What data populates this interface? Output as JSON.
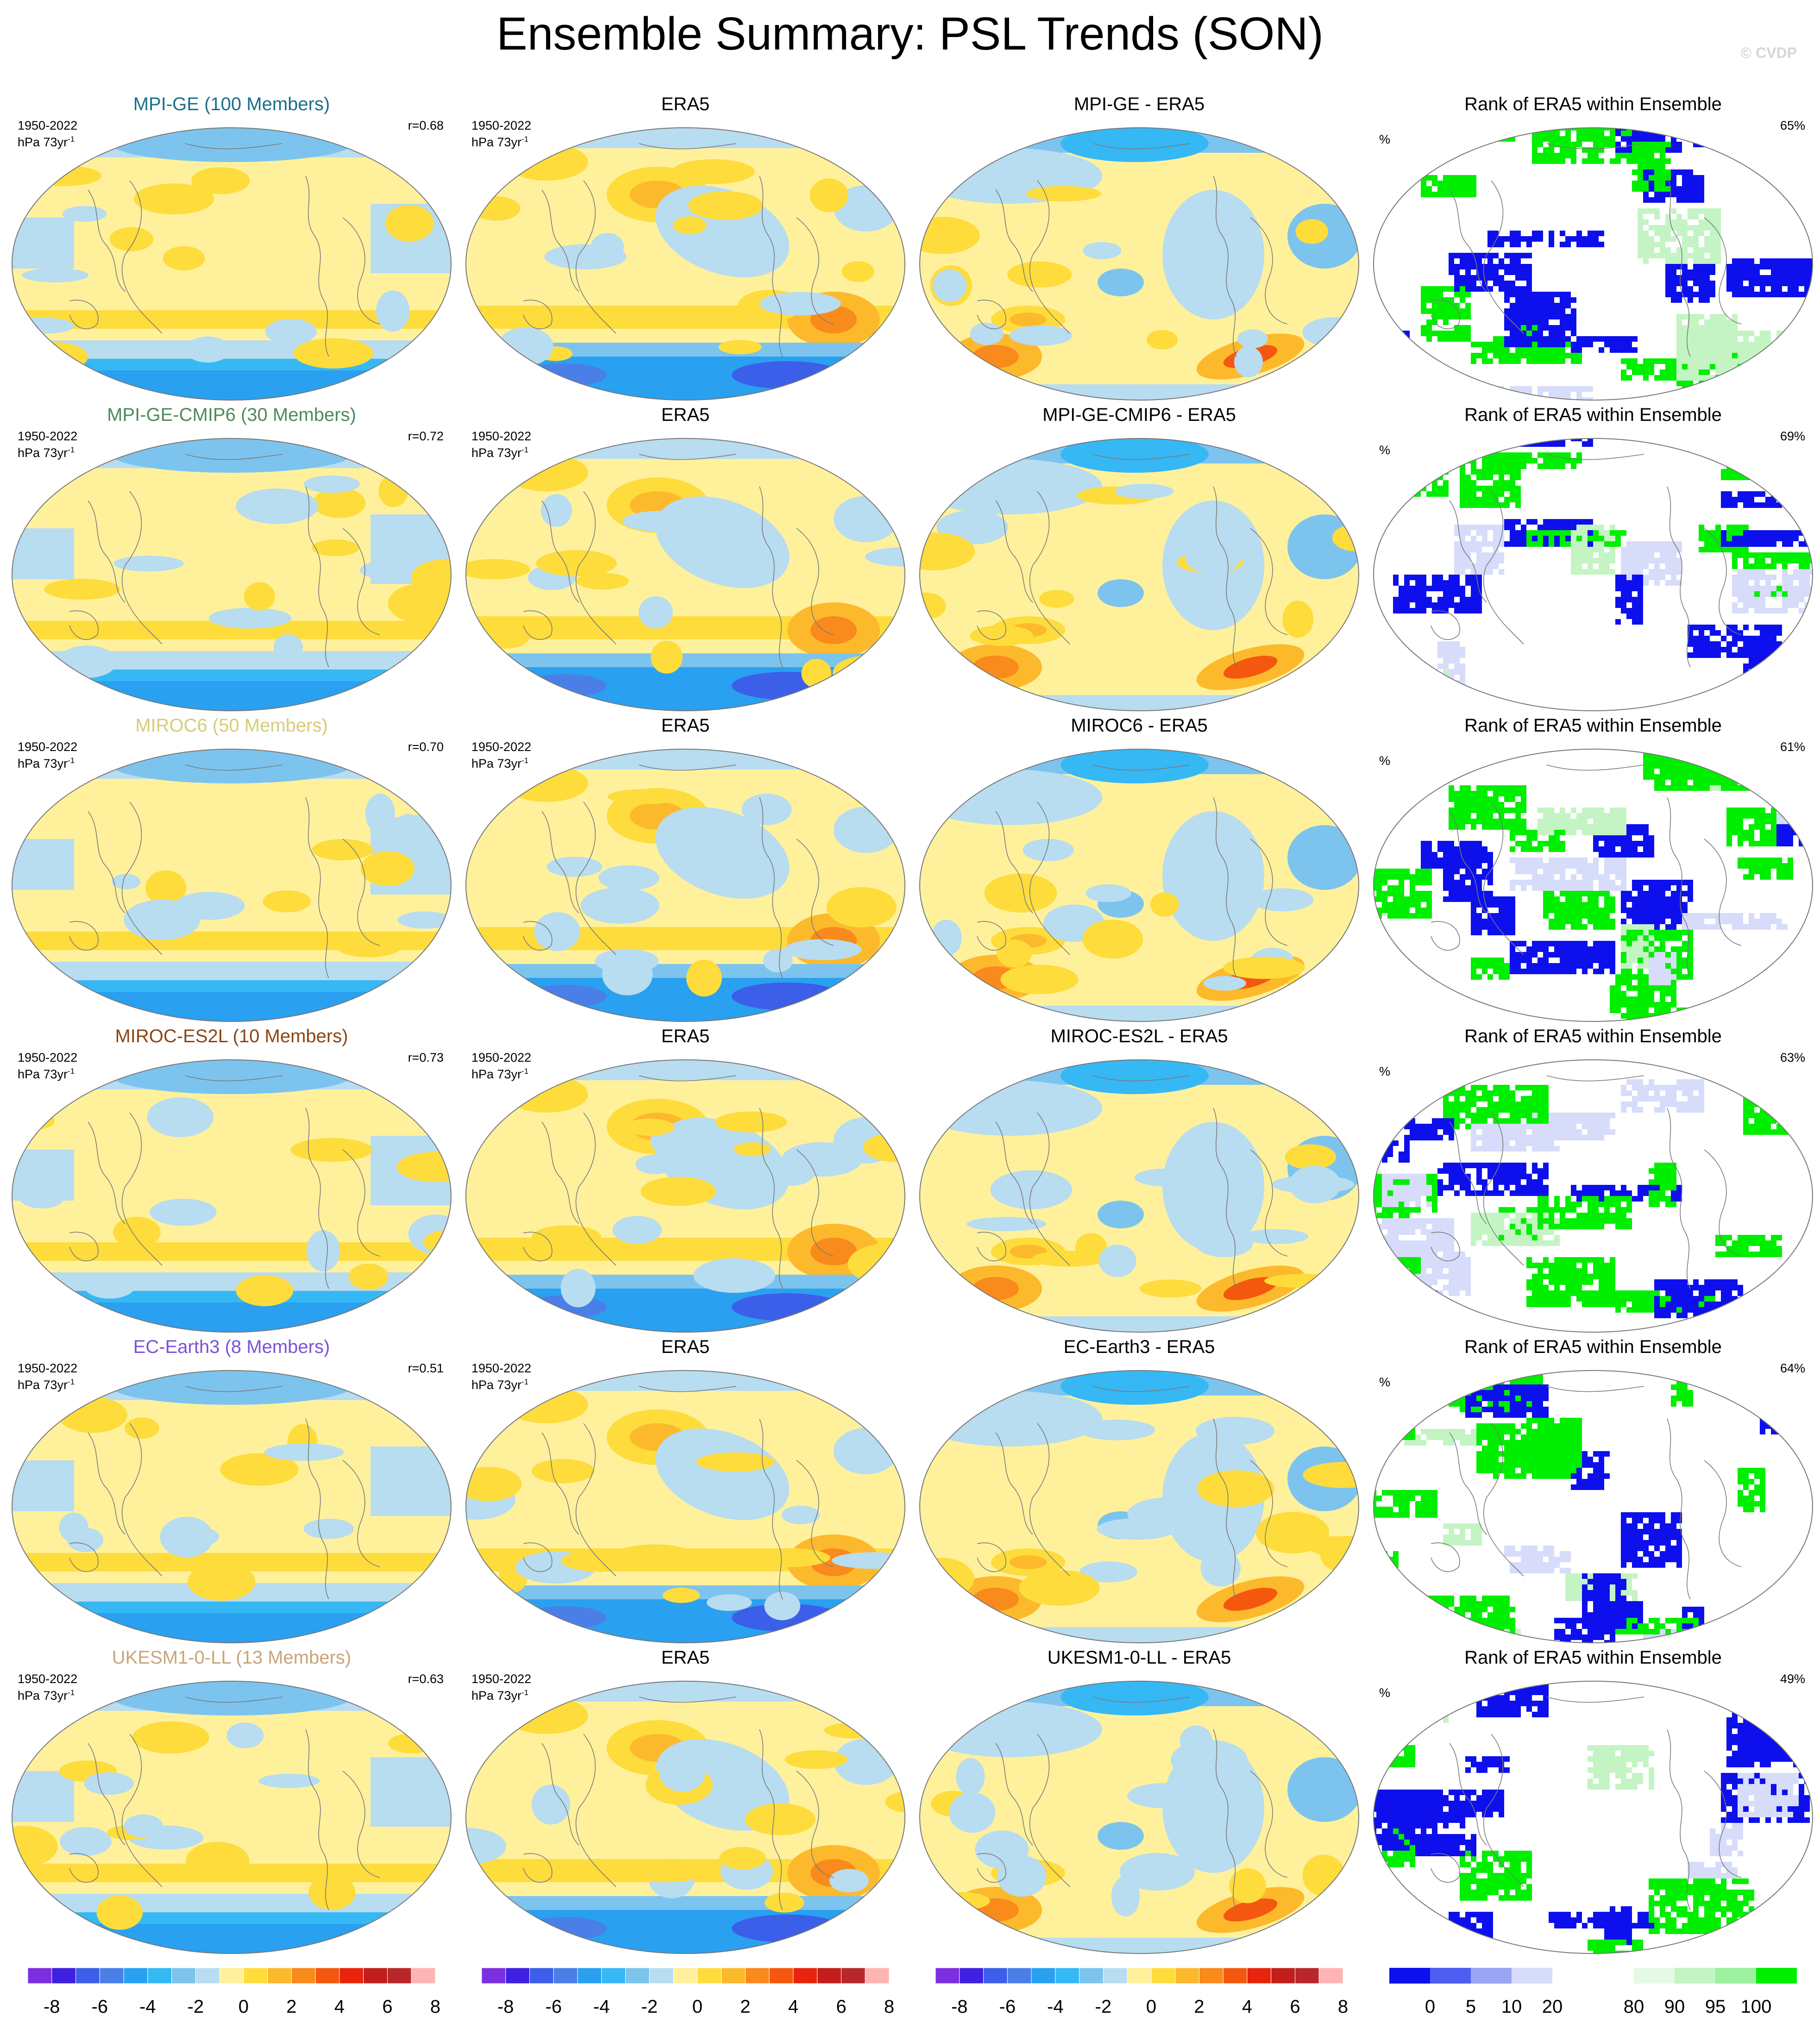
{
  "title": "Ensemble Summary: PSL Trends (SON)",
  "watermark": "© CVDP",
  "colors": {
    "trend_scale": [
      "#7c2fe0",
      "#3f1fe0",
      "#3b5fe8",
      "#4a7fe8",
      "#2aa0f0",
      "#36b8f5",
      "#7cc4ee",
      "#b8dcf0",
      "#fff19c",
      "#fedc3c",
      "#fdb92c",
      "#f98a1c",
      "#f4580f",
      "#e8240d",
      "#c21e1c",
      "#b8282a",
      "#ffb4b4"
    ],
    "rank_scale": [
      "#0d10ec",
      "#4f5ef0",
      "#9aa6f4",
      "#d6dcfa",
      "#ffffff",
      "#ffffff",
      "#e6f8e6",
      "#c4f4c4",
      "#9cf0a0",
      "#00ee00"
    ]
  },
  "rows": [
    {
      "model_title": "MPI-GE (100 Members)",
      "model_color": "#1a6f8a",
      "years": "1950-2022",
      "units": "hPa 73yr",
      "units_sup": "-1",
      "r": "r=0.68",
      "era_title": "ERA5",
      "diff_title": "MPI-GE - ERA5",
      "rank_title": "Rank of ERA5 within Ensemble",
      "rank_pct": "65%",
      "rank_unit": "%"
    },
    {
      "model_title": "MPI-GE-CMIP6 (30 Members)",
      "model_color": "#4e8a5a",
      "years": "1950-2022",
      "units": "hPa 73yr",
      "units_sup": "-1",
      "r": "r=0.72",
      "era_title": "ERA5",
      "diff_title": "MPI-GE-CMIP6 - ERA5",
      "rank_title": "Rank of ERA5 within Ensemble",
      "rank_pct": "69%",
      "rank_unit": "%"
    },
    {
      "model_title": "MIROC6 (50 Members)",
      "model_color": "#d6cc7a",
      "years": "1950-2022",
      "units": "hPa 73yr",
      "units_sup": "-1",
      "r": "r=0.70",
      "era_title": "ERA5",
      "diff_title": "MIROC6 - ERA5",
      "rank_title": "Rank of ERA5 within Ensemble",
      "rank_pct": "61%",
      "rank_unit": "%"
    },
    {
      "model_title": "MIROC-ES2L (10 Members)",
      "model_color": "#8b4513",
      "years": "1950-2022",
      "units": "hPa 73yr",
      "units_sup": "-1",
      "r": "r=0.73",
      "era_title": "ERA5",
      "diff_title": "MIROC-ES2L - ERA5",
      "rank_title": "Rank of ERA5 within Ensemble",
      "rank_pct": "63%",
      "rank_unit": "%"
    },
    {
      "model_title": "EC-Earth3 (8 Members)",
      "model_color": "#7b52d6",
      "years": "1950-2022",
      "units": "hPa 73yr",
      "units_sup": "-1",
      "r": "r=0.51",
      "era_title": "ERA5",
      "diff_title": "EC-Earth3 - ERA5",
      "rank_title": "Rank of ERA5 within Ensemble",
      "rank_pct": "64%",
      "rank_unit": "%"
    },
    {
      "model_title": "UKESM1-0-LL (13 Members)",
      "model_color": "#c8a478",
      "years": "1950-2022",
      "units": "hPa 73yr",
      "units_sup": "-1",
      "r": "r=0.63",
      "era_title": "ERA5",
      "diff_title": "UKESM1-0-LL - ERA5",
      "rank_title": "Rank of ERA5 within Ensemble",
      "rank_pct": "49%",
      "rank_unit": "%"
    }
  ],
  "colorbars": {
    "trend_labels": [
      "-8",
      "-6",
      "-4",
      "-2",
      "0",
      "2",
      "4",
      "6",
      "8"
    ],
    "rank_labels": [
      "0",
      "5",
      "10",
      "20",
      "80",
      "90",
      "95",
      "100"
    ]
  }
}
